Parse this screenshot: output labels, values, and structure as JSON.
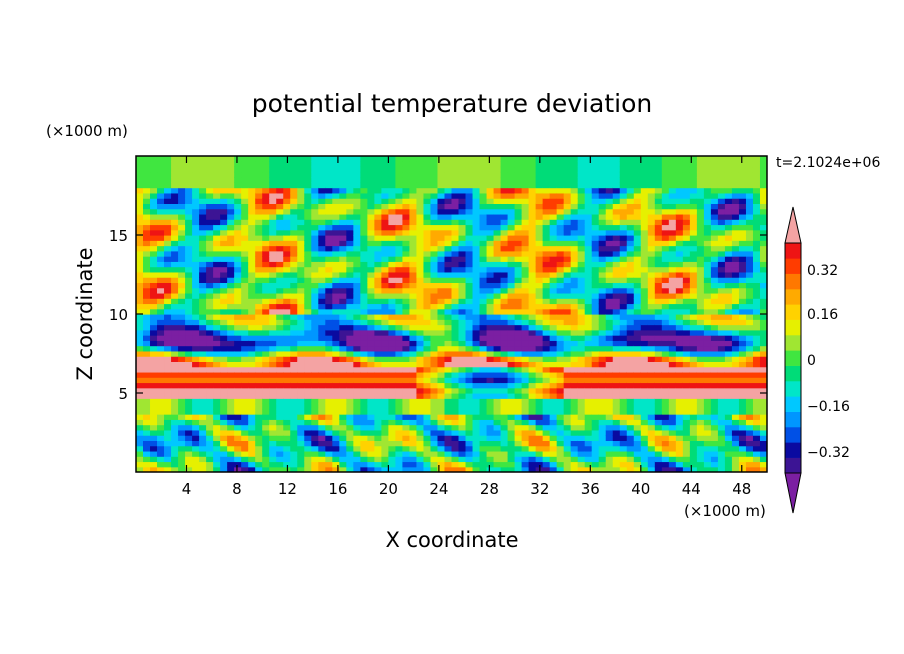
{
  "chart_data": {
    "type": "heatmap",
    "title": "potential temperature deviation",
    "xlabel": "X coordinate",
    "ylabel": "Z coordinate",
    "x_unit_label": "(×1000 m)",
    "y_unit_label": "(×1000 m)",
    "time_label": "t=2.1024e+06",
    "xlim": [
      0,
      50
    ],
    "ylim": [
      0,
      20
    ],
    "x_ticks": [
      "4",
      "8",
      "12",
      "16",
      "20",
      "24",
      "28",
      "32",
      "36",
      "40",
      "44",
      "48"
    ],
    "y_ticks": [
      "5",
      "10",
      "15"
    ],
    "colorbar": {
      "levels": [
        -0.4,
        -0.36,
        -0.32,
        -0.28,
        -0.24,
        -0.2,
        -0.16,
        -0.12,
        -0.08,
        -0.04,
        0,
        0.04,
        0.08,
        0.12,
        0.16,
        0.2,
        0.24,
        0.28,
        0.32,
        0.36,
        0.4
      ],
      "labels": [
        "0.32",
        "0.16",
        "0",
        "−0.16",
        "−0.32"
      ],
      "colors": [
        "#7b1fa2",
        "#3c1494",
        "#0a0aa0",
        "#0050e6",
        "#0096ff",
        "#00c8ff",
        "#00e6c8",
        "#00dc78",
        "#40e640",
        "#a0e632",
        "#e6f000",
        "#ffd200",
        "#ffaa00",
        "#ff7800",
        "#ff3c00",
        "#ee1414",
        "#f4a3a3"
      ]
    }
  }
}
